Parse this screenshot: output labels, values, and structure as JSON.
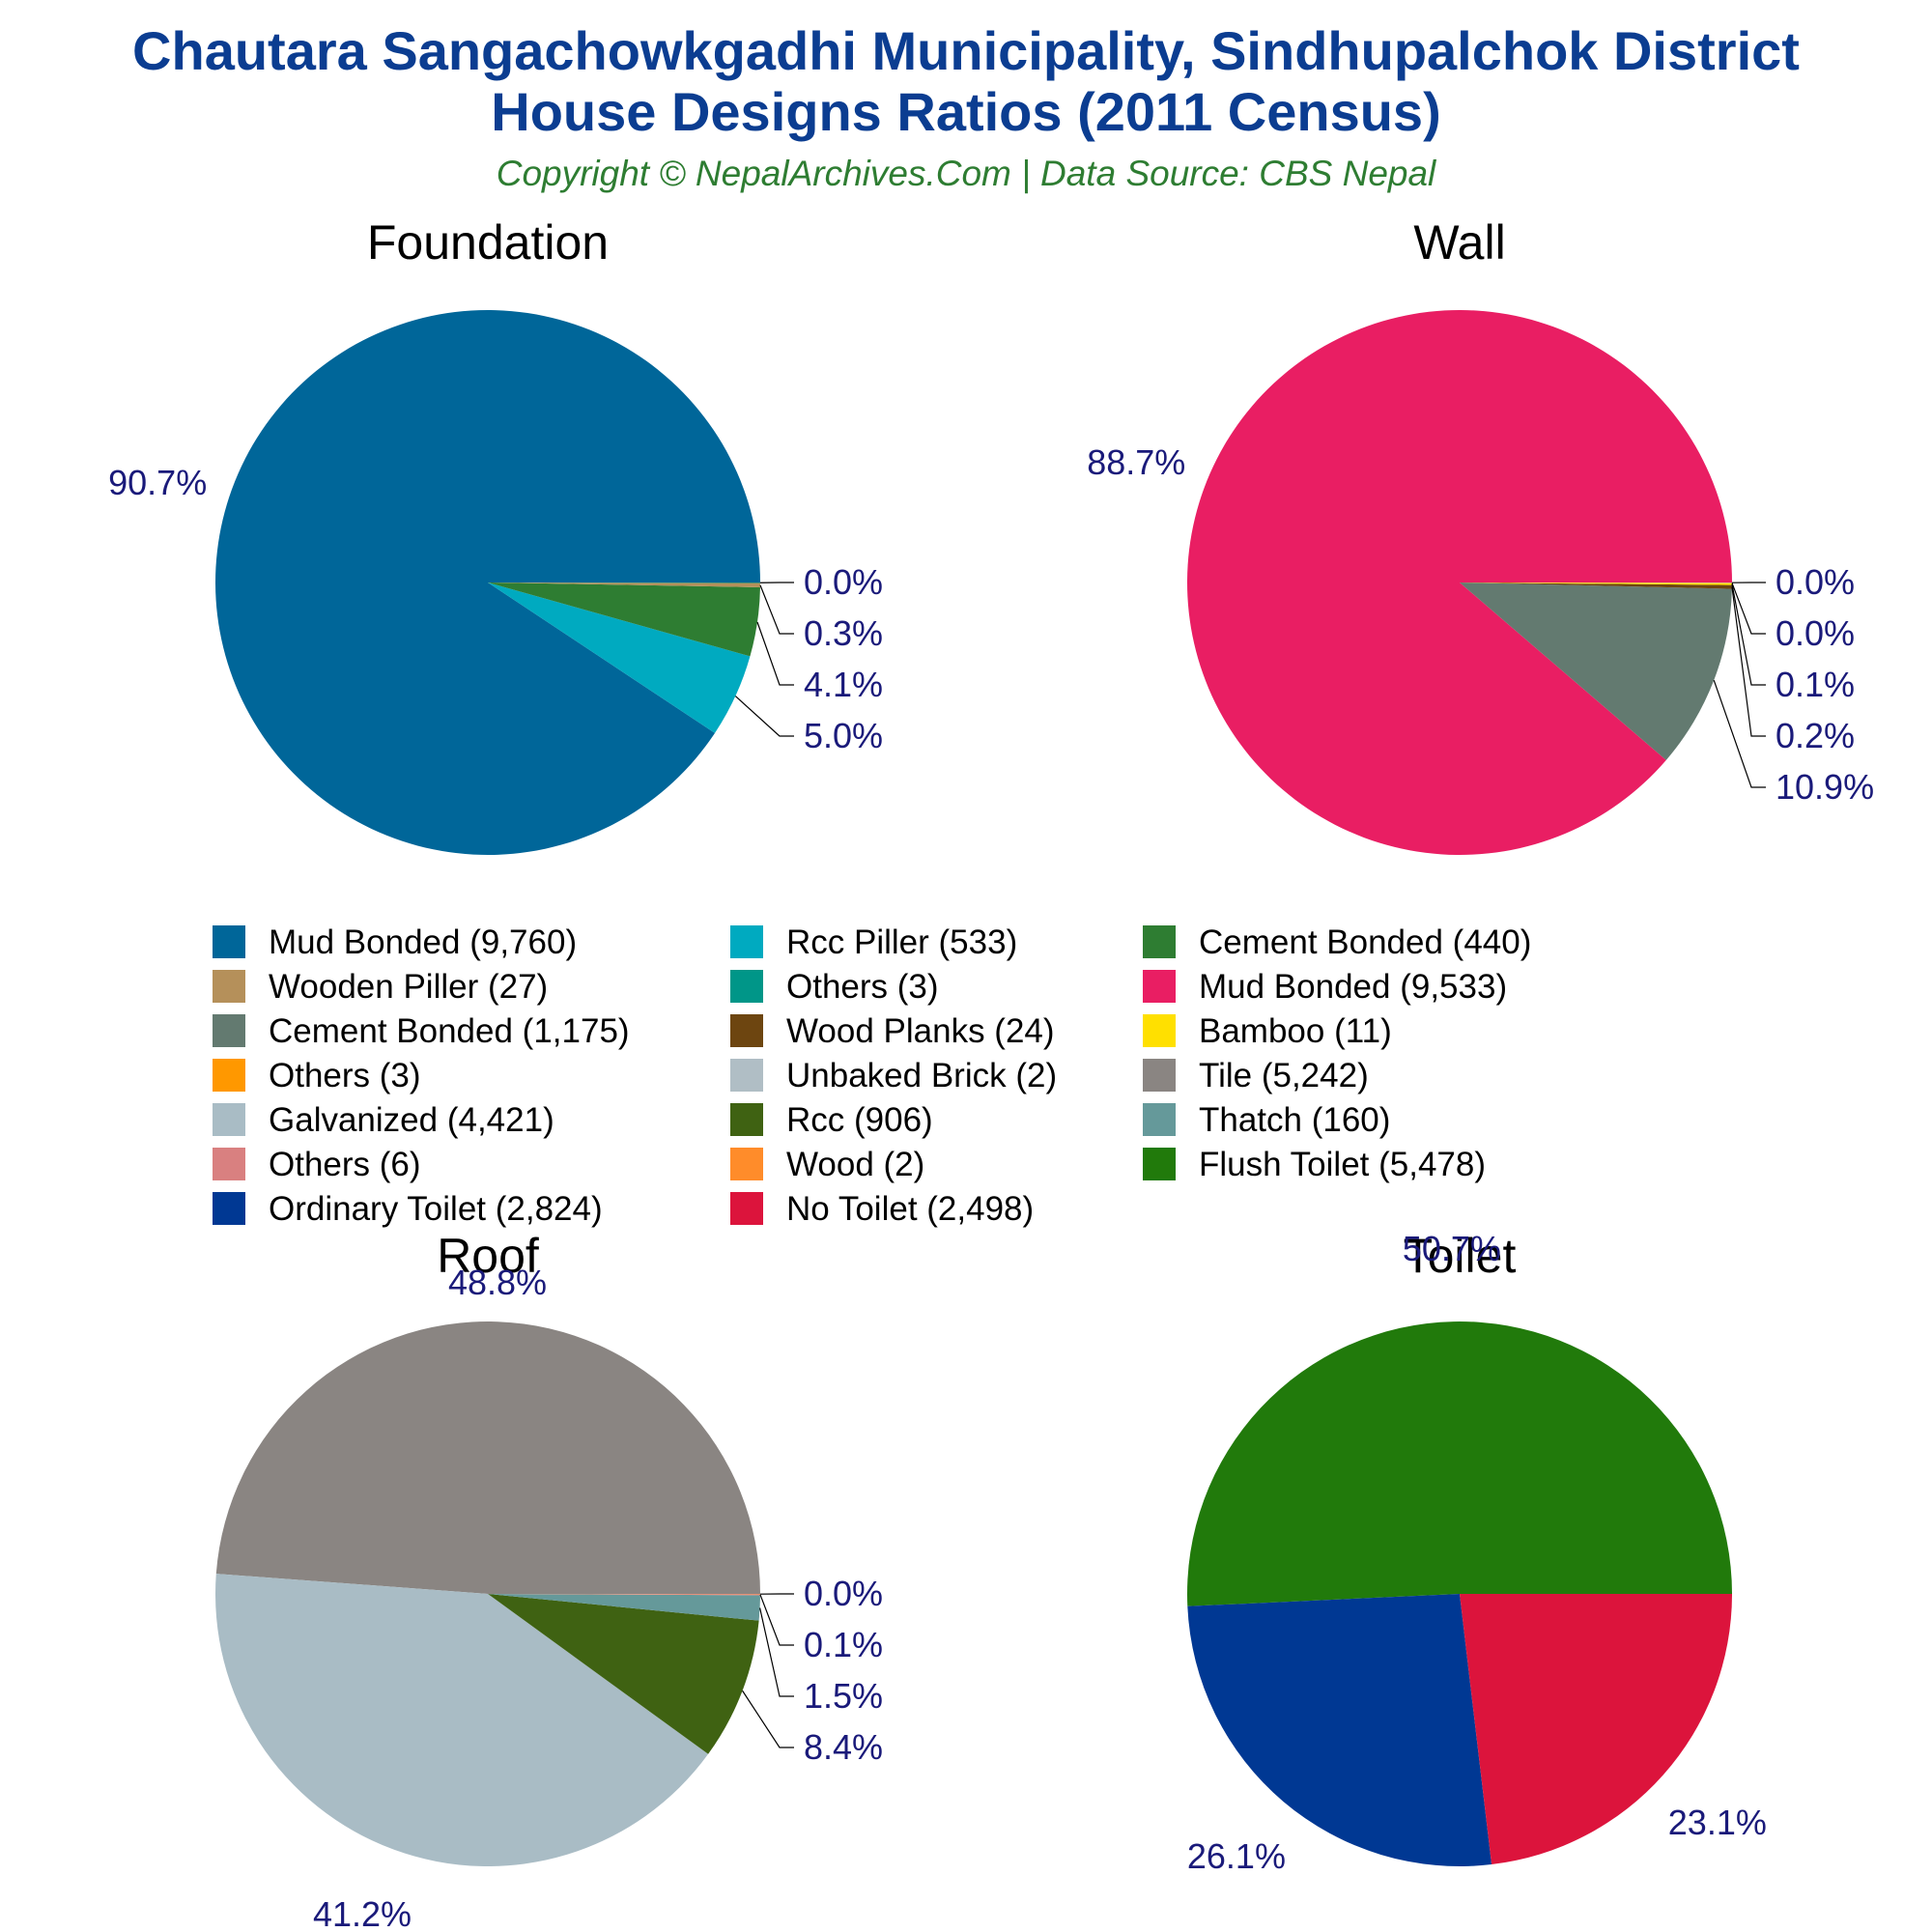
{
  "header": {
    "title_line1": "Chautara Sangachowkgadhi Municipality, Sindhupalchok District",
    "title_line2": "House Designs Ratios (2011 Census)",
    "subtitle": "Copyright © NepalArchives.Com | Data Source: CBS Nepal"
  },
  "colors": {
    "title": "#0b3d91",
    "subtitle": "#2e7d32",
    "pct_label": "#1a1a7a",
    "panel_title": "#000000",
    "leader": "#000000"
  },
  "chart_data": [
    {
      "type": "pie",
      "title": "Foundation",
      "slices": [
        {
          "label": "Mud Bonded",
          "value": 9760,
          "pct": "90.7%",
          "color": "#006699"
        },
        {
          "label": "Rcc Piller",
          "value": 533,
          "pct": "5.0%",
          "color": "#00aac0"
        },
        {
          "label": "Cement Bonded",
          "value": 440,
          "pct": "4.1%",
          "color": "#2e7d32"
        },
        {
          "label": "Wooden Piller",
          "value": 27,
          "pct": "0.3%",
          "color": "#b5905a"
        },
        {
          "label": "Others",
          "value": 3,
          "pct": "0.0%",
          "color": "#009688"
        }
      ]
    },
    {
      "type": "pie",
      "title": "Wall",
      "slices": [
        {
          "label": "Mud Bonded",
          "value": 9533,
          "pct": "88.7%",
          "color": "#e91e63"
        },
        {
          "label": "Cement Bonded",
          "value": 1175,
          "pct": "10.9%",
          "color": "#637a70"
        },
        {
          "label": "Wood Planks",
          "value": 24,
          "pct": "0.2%",
          "color": "#6d4510"
        },
        {
          "label": "Bamboo",
          "value": 11,
          "pct": "0.1%",
          "color": "#ffe000"
        },
        {
          "label": "Others",
          "value": 3,
          "pct": "0.0%",
          "color": "#ff9800"
        },
        {
          "label": "Unbaked Brick",
          "value": 2,
          "pct": "0.0%",
          "color": "#b0bec5"
        }
      ]
    },
    {
      "type": "pie",
      "title": "Roof",
      "slices": [
        {
          "label": "Tile",
          "value": 5242,
          "pct": "48.8%",
          "color": "#8a8582"
        },
        {
          "label": "Galvanized",
          "value": 4421,
          "pct": "41.2%",
          "color": "#a9bcc5"
        },
        {
          "label": "Rcc",
          "value": 906,
          "pct": "8.4%",
          "color": "#3f6212"
        },
        {
          "label": "Thatch",
          "value": 160,
          "pct": "1.5%",
          "color": "#65999a"
        },
        {
          "label": "Others",
          "value": 6,
          "pct": "0.1%",
          "color": "#d98080"
        },
        {
          "label": "Wood",
          "value": 2,
          "pct": "0.0%",
          "color": "#ff8c2a"
        }
      ]
    },
    {
      "type": "pie",
      "title": "Toilet",
      "slices": [
        {
          "label": "Flush Toilet",
          "value": 5478,
          "pct": "50.7%",
          "color": "#217a0b"
        },
        {
          "label": "Ordinary Toilet",
          "value": 2824,
          "pct": "26.1%",
          "color": "#003893"
        },
        {
          "label": "No Toilet",
          "value": 2498,
          "pct": "23.1%",
          "color": "#dc143c"
        }
      ]
    }
  ],
  "legend": {
    "columns": [
      [
        {
          "label": "Mud Bonded (9,760)",
          "color": "#006699"
        },
        {
          "label": "Wooden Piller (27)",
          "color": "#b5905a"
        },
        {
          "label": "Cement Bonded (1,175)",
          "color": "#637a70"
        },
        {
          "label": "Others (3)",
          "color": "#ff9800"
        },
        {
          "label": "Galvanized (4,421)",
          "color": "#a9bcc5"
        },
        {
          "label": "Others (6)",
          "color": "#d98080"
        },
        {
          "label": "Ordinary Toilet (2,824)",
          "color": "#003893"
        }
      ],
      [
        {
          "label": "Rcc Piller (533)",
          "color": "#00aac0"
        },
        {
          "label": "Others (3)",
          "color": "#009688"
        },
        {
          "label": "Wood Planks (24)",
          "color": "#6d4510"
        },
        {
          "label": "Unbaked Brick (2)",
          "color": "#b0bec5"
        },
        {
          "label": "Rcc (906)",
          "color": "#3f6212"
        },
        {
          "label": "Wood (2)",
          "color": "#ff8c2a"
        },
        {
          "label": "No Toilet (2,498)",
          "color": "#dc143c"
        }
      ],
      [
        {
          "label": "Cement Bonded (440)",
          "color": "#2e7d32"
        },
        {
          "label": "Mud Bonded (9,533)",
          "color": "#e91e63"
        },
        {
          "label": "Bamboo (11)",
          "color": "#ffe000"
        },
        {
          "label": "Tile (5,242)",
          "color": "#8a8582"
        },
        {
          "label": "Thatch (160)",
          "color": "#65999a"
        },
        {
          "label": "Flush Toilet (5,478)",
          "color": "#217a0b"
        }
      ]
    ]
  }
}
